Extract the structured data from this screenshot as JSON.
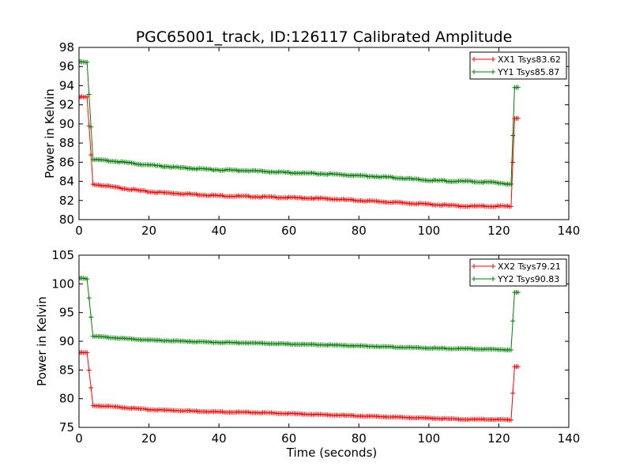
{
  "title": "PGC65001_track, ID:126117 Calibrated Amplitude",
  "colors": {
    "red": "#ff0000",
    "green": "#008000"
  },
  "chart_data": [
    {
      "type": "line",
      "xlabel": "",
      "ylabel": "Power in Kelvin",
      "xlim": [
        0,
        140
      ],
      "ylim": [
        80,
        98
      ],
      "xticks": [
        0,
        20,
        40,
        60,
        80,
        100,
        120,
        140
      ],
      "yticks": [
        80,
        82,
        84,
        86,
        88,
        90,
        92,
        94,
        96,
        98
      ],
      "grid": false,
      "legend": "top-right",
      "marker": "+",
      "series": [
        {
          "name": "XX1 Tsys83.62",
          "color": "#ff0000",
          "x": [
            0.3,
            1.3,
            2.3,
            4,
            10,
            20,
            30,
            40,
            50,
            60,
            70,
            80,
            90,
            100,
            110,
            118,
            123.5,
            124.5,
            125.5
          ],
          "y": [
            92.8,
            92.8,
            92.8,
            83.7,
            83.4,
            82.9,
            82.7,
            82.5,
            82.4,
            82.3,
            82.2,
            82.0,
            81.8,
            81.6,
            81.4,
            81.4,
            81.4,
            90.6,
            90.6
          ]
        },
        {
          "name": "YY1 Tsys85.87",
          "color": "#008000",
          "x": [
            0.3,
            1.3,
            2.3,
            4,
            10,
            20,
            30,
            40,
            50,
            60,
            70,
            80,
            90,
            100,
            110,
            118,
            123.5,
            124.5,
            125.5
          ],
          "y": [
            96.5,
            96.5,
            96.5,
            86.3,
            86.1,
            85.7,
            85.4,
            85.2,
            85.1,
            84.9,
            84.8,
            84.6,
            84.4,
            84.1,
            84.0,
            83.9,
            83.7,
            93.8,
            93.8
          ]
        }
      ]
    },
    {
      "type": "line",
      "xlabel": "Time (seconds)",
      "ylabel": "Power in Kelvin",
      "xlim": [
        0,
        140
      ],
      "ylim": [
        75,
        105
      ],
      "xticks": [
        0,
        20,
        40,
        60,
        80,
        100,
        120,
        140
      ],
      "yticks": [
        75,
        80,
        85,
        90,
        95,
        100,
        105
      ],
      "grid": false,
      "legend": "top-right",
      "marker": "+",
      "series": [
        {
          "name": "XX2 Tsys79.21",
          "color": "#ff0000",
          "x": [
            0.3,
            1.3,
            2.3,
            4,
            10,
            20,
            30,
            40,
            50,
            60,
            70,
            80,
            90,
            100,
            110,
            118,
            123.5,
            124.5,
            125.5
          ],
          "y": [
            88.0,
            88.0,
            88.0,
            78.8,
            78.6,
            78.1,
            77.9,
            77.7,
            77.6,
            77.4,
            77.2,
            77.0,
            76.8,
            76.6,
            76.4,
            76.4,
            76.3,
            85.6,
            85.6
          ]
        },
        {
          "name": "YY2 Tsys90.83",
          "color": "#008000",
          "x": [
            0.3,
            1.3,
            2.3,
            4,
            10,
            20,
            30,
            40,
            50,
            60,
            70,
            80,
            90,
            100,
            110,
            118,
            123.5,
            124.5,
            125.5
          ],
          "y": [
            101.0,
            101.0,
            100.9,
            90.9,
            90.6,
            90.2,
            90.0,
            89.8,
            89.7,
            89.5,
            89.4,
            89.2,
            89.0,
            88.8,
            88.7,
            88.6,
            88.5,
            98.5,
            98.5
          ]
        }
      ]
    }
  ]
}
